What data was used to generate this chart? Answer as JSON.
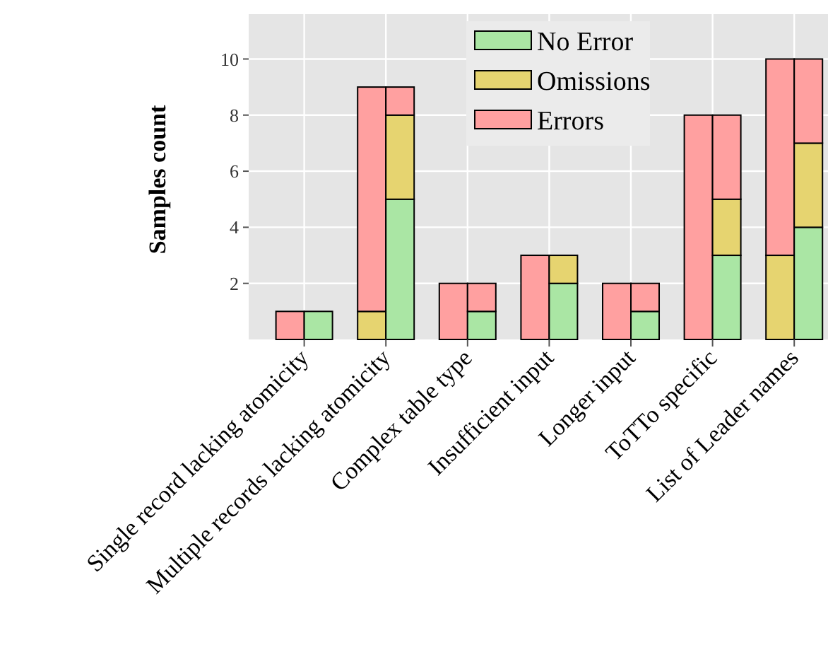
{
  "chart_data": {
    "type": "bar",
    "ylabel": "Samples count",
    "categories": [
      "Single record lacking atomicity",
      "Multiple records lacking atomicity",
      "Complex table type",
      "Insufficient input",
      "Longer input",
      "ToTTo specific",
      "List of Leader names"
    ],
    "series": [
      {
        "color": "#e6d470",
        "base": [
          null,
          0,
          null,
          null,
          null,
          null,
          0
        ],
        "values": [
          null,
          1,
          null,
          null,
          null,
          null,
          3
        ]
      },
      {
        "color": "#ffa0a0",
        "base": [
          0,
          1,
          0,
          0,
          0,
          0,
          3
        ],
        "values": [
          1,
          8,
          2,
          3,
          2,
          8,
          7
        ]
      },
      {
        "name": "No Error",
        "color": "#aae6a4",
        "base": [
          0,
          0,
          0,
          0,
          0,
          0,
          0
        ],
        "values": [
          1,
          5,
          1,
          2,
          1,
          3,
          4
        ]
      },
      {
        "name": "Omissions",
        "color": "#e6d470",
        "base": [
          null,
          5,
          null,
          2,
          null,
          3,
          4
        ],
        "values": [
          null,
          3,
          null,
          1,
          null,
          2,
          3
        ]
      },
      {
        "name": "Errors",
        "color": "#ffa0a0",
        "base": [
          null,
          8,
          1,
          null,
          1,
          5,
          7
        ],
        "values": [
          null,
          1,
          1,
          null,
          1,
          3,
          3
        ]
      }
    ],
    "ylim": [
      0,
      11.6
    ],
    "yticks": [
      2,
      4,
      6,
      8,
      10
    ],
    "grid": true,
    "legend": "top"
  }
}
